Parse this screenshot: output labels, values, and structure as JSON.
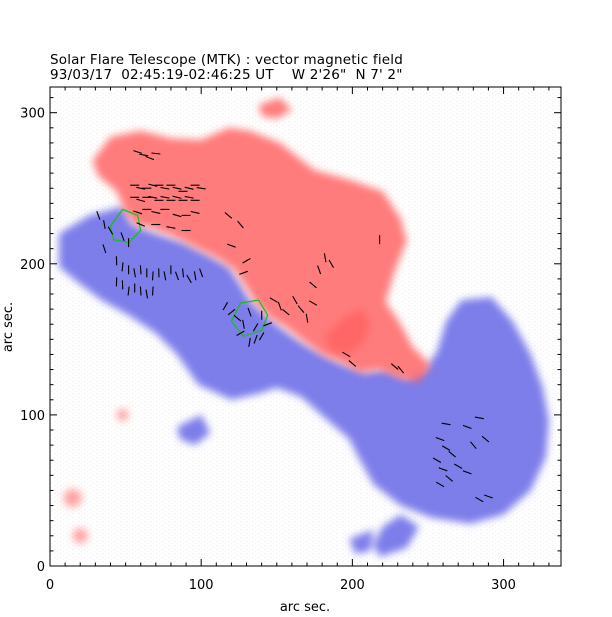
{
  "chart_data": {
    "type": "heatmap",
    "title": "Solar Flare Telescope (MTK) : vector magnetic field",
    "subtitle": "93/03/17  02:45:19-02:46:25 UT    W 2'26\"  N 7' 2\"",
    "xlabel": "arc sec.",
    "ylabel": "arc sec.",
    "xlim": [
      0,
      338
    ],
    "ylim": [
      0,
      317
    ],
    "x_ticks": [
      0,
      100,
      200,
      300
    ],
    "y_ticks": [
      0,
      100,
      200,
      300
    ],
    "colors": {
      "positive_polarity": "#ff6464",
      "negative_polarity": "#5a5ae6",
      "neutral_line": "#16c016",
      "vector": "#000000"
    },
    "positive_regions": [
      [
        [
          28,
          268
        ],
        [
          40,
          284
        ],
        [
          60,
          288
        ],
        [
          80,
          283
        ],
        [
          100,
          282
        ],
        [
          118,
          290
        ],
        [
          132,
          288
        ],
        [
          152,
          280
        ],
        [
          175,
          262
        ],
        [
          200,
          255
        ],
        [
          220,
          248
        ],
        [
          232,
          230
        ],
        [
          236,
          215
        ],
        [
          228,
          195
        ],
        [
          222,
          175
        ],
        [
          232,
          160
        ],
        [
          240,
          145
        ],
        [
          252,
          133
        ],
        [
          244,
          122
        ],
        [
          232,
          124
        ],
        [
          218,
          130
        ],
        [
          205,
          128
        ],
        [
          192,
          135
        ],
        [
          180,
          140
        ],
        [
          166,
          150
        ],
        [
          156,
          158
        ],
        [
          146,
          164
        ],
        [
          136,
          174
        ],
        [
          130,
          184
        ],
        [
          122,
          196
        ],
        [
          112,
          203
        ],
        [
          98,
          210
        ],
        [
          82,
          218
        ],
        [
          66,
          224
        ],
        [
          56,
          226
        ],
        [
          50,
          234
        ],
        [
          44,
          248
        ],
        [
          32,
          258
        ]
      ],
      [
        [
          182,
          152
        ],
        [
          195,
          165
        ],
        [
          206,
          170
        ],
        [
          212,
          160
        ],
        [
          206,
          146
        ],
        [
          196,
          140
        ],
        [
          186,
          142
        ]
      ],
      [
        [
          138,
          305
        ],
        [
          152,
          310
        ],
        [
          160,
          302
        ],
        [
          150,
          296
        ],
        [
          140,
          298
        ]
      ]
    ],
    "negative_regions": [
      [
        [
          6,
          220
        ],
        [
          26,
          232
        ],
        [
          48,
          238
        ],
        [
          54,
          226
        ],
        [
          70,
          220
        ],
        [
          88,
          214
        ],
        [
          104,
          206
        ],
        [
          118,
          198
        ],
        [
          126,
          186
        ],
        [
          132,
          176
        ],
        [
          142,
          166
        ],
        [
          152,
          158
        ],
        [
          166,
          148
        ],
        [
          180,
          140
        ],
        [
          192,
          134
        ],
        [
          208,
          128
        ],
        [
          222,
          130
        ],
        [
          236,
          124
        ],
        [
          248,
          130
        ],
        [
          256,
          142
        ],
        [
          262,
          162
        ],
        [
          272,
          176
        ],
        [
          292,
          178
        ],
        [
          306,
          162
        ],
        [
          318,
          140
        ],
        [
          326,
          118
        ],
        [
          330,
          96
        ],
        [
          328,
          72
        ],
        [
          318,
          50
        ],
        [
          300,
          34
        ],
        [
          278,
          28
        ],
        [
          252,
          32
        ],
        [
          232,
          40
        ],
        [
          214,
          54
        ],
        [
          204,
          72
        ],
        [
          198,
          84
        ],
        [
          184,
          96
        ],
        [
          166,
          112
        ],
        [
          150,
          118
        ],
        [
          138,
          114
        ],
        [
          120,
          110
        ],
        [
          98,
          120
        ],
        [
          84,
          140
        ],
        [
          70,
          154
        ],
        [
          52,
          166
        ],
        [
          34,
          176
        ],
        [
          18,
          188
        ],
        [
          6,
          198
        ]
      ],
      [
        [
          218,
          6
        ],
        [
          236,
          12
        ],
        [
          244,
          26
        ],
        [
          232,
          34
        ],
        [
          220,
          26
        ],
        [
          214,
          14
        ]
      ],
      [
        [
          84,
          92
        ],
        [
          100,
          100
        ],
        [
          106,
          88
        ],
        [
          96,
          80
        ],
        [
          86,
          84
        ]
      ],
      [
        [
          198,
          18
        ],
        [
          214,
          24
        ],
        [
          212,
          10
        ],
        [
          202,
          8
        ]
      ]
    ],
    "positive_spots": [
      [
        15,
        45,
        6
      ],
      [
        20,
        20,
        5
      ],
      [
        48,
        100,
        4
      ]
    ],
    "neutral_line_loops": [
      [
        [
          40,
          225
        ],
        [
          48,
          236
        ],
        [
          58,
          232
        ],
        [
          60,
          222
        ],
        [
          52,
          214
        ],
        [
          42,
          216
        ]
      ],
      [
        [
          120,
          162
        ],
        [
          126,
          174
        ],
        [
          138,
          176
        ],
        [
          144,
          166
        ],
        [
          140,
          156
        ],
        [
          128,
          152
        ]
      ]
    ],
    "vectors": [
      [
        58,
        274,
        -18
      ],
      [
        62,
        272,
        -10
      ],
      [
        66,
        270,
        -20
      ],
      [
        70,
        273,
        -6
      ],
      [
        56,
        252,
        0
      ],
      [
        60,
        250,
        -12
      ],
      [
        64,
        250,
        0
      ],
      [
        68,
        252,
        -14
      ],
      [
        72,
        252,
        0
      ],
      [
        76,
        250,
        -10
      ],
      [
        80,
        252,
        0
      ],
      [
        84,
        250,
        -12
      ],
      [
        88,
        248,
        0
      ],
      [
        92,
        250,
        -14
      ],
      [
        96,
        252,
        0
      ],
      [
        100,
        250,
        -8
      ],
      [
        56,
        244,
        0
      ],
      [
        60,
        242,
        -16
      ],
      [
        64,
        244,
        0
      ],
      [
        68,
        244,
        -12
      ],
      [
        72,
        242,
        0
      ],
      [
        76,
        244,
        -10
      ],
      [
        80,
        242,
        0
      ],
      [
        84,
        244,
        -14
      ],
      [
        88,
        242,
        0
      ],
      [
        92,
        244,
        -10
      ],
      [
        96,
        242,
        0
      ],
      [
        58,
        234,
        -18
      ],
      [
        64,
        236,
        0
      ],
      [
        70,
        234,
        -12
      ],
      [
        76,
        236,
        0
      ],
      [
        84,
        232,
        -16
      ],
      [
        90,
        232,
        0
      ],
      [
        96,
        234,
        -12
      ],
      [
        60,
        226,
        -24
      ],
      [
        70,
        226,
        0
      ],
      [
        80,
        224,
        -10
      ],
      [
        90,
        222,
        0
      ],
      [
        32,
        232,
        -70
      ],
      [
        36,
        226,
        -80
      ],
      [
        40,
        222,
        -60
      ],
      [
        48,
        218,
        -70
      ],
      [
        52,
        214,
        -90
      ],
      [
        36,
        210,
        -72
      ],
      [
        44,
        202,
        -88
      ],
      [
        48,
        198,
        -96
      ],
      [
        52,
        196,
        -90
      ],
      [
        56,
        194,
        -80
      ],
      [
        60,
        196,
        -86
      ],
      [
        64,
        194,
        -90
      ],
      [
        68,
        192,
        -94
      ],
      [
        72,
        194,
        -88
      ],
      [
        76,
        192,
        -80
      ],
      [
        80,
        196,
        -90
      ],
      [
        84,
        192,
        -70
      ],
      [
        88,
        194,
        -84
      ],
      [
        92,
        190,
        -60
      ],
      [
        96,
        192,
        -80
      ],
      [
        100,
        194,
        -70
      ],
      [
        44,
        188,
        -92
      ],
      [
        48,
        186,
        -88
      ],
      [
        52,
        182,
        -96
      ],
      [
        56,
        184,
        -90
      ],
      [
        60,
        182,
        -86
      ],
      [
        64,
        180,
        -80
      ],
      [
        68,
        182,
        -94
      ],
      [
        118,
        232,
        -40
      ],
      [
        126,
        226,
        -50
      ],
      [
        120,
        212,
        -20
      ],
      [
        130,
        202,
        30
      ],
      [
        128,
        194,
        20
      ],
      [
        116,
        172,
        60
      ],
      [
        120,
        168,
        40
      ],
      [
        124,
        164,
        -40
      ],
      [
        128,
        160,
        -80
      ],
      [
        132,
        168,
        -70
      ],
      [
        136,
        158,
        60
      ],
      [
        140,
        166,
        90
      ],
      [
        144,
        160,
        20
      ],
      [
        132,
        148,
        80
      ],
      [
        136,
        150,
        70
      ],
      [
        140,
        152,
        60
      ],
      [
        126,
        154,
        30
      ],
      [
        148,
        176,
        -30
      ],
      [
        152,
        172,
        -70
      ],
      [
        156,
        168,
        -40
      ],
      [
        162,
        176,
        -60
      ],
      [
        166,
        170,
        -50
      ],
      [
        170,
        164,
        -80
      ],
      [
        174,
        174,
        -30
      ],
      [
        174,
        186,
        -40
      ],
      [
        178,
        196,
        -70
      ],
      [
        182,
        204,
        -80
      ],
      [
        186,
        200,
        -60
      ],
      [
        196,
        140,
        -30
      ],
      [
        200,
        134,
        -40
      ],
      [
        218,
        216,
        -90
      ],
      [
        228,
        132,
        -40
      ],
      [
        232,
        130,
        -50
      ],
      [
        262,
        94,
        -10
      ],
      [
        276,
        92,
        -20
      ],
      [
        284,
        98,
        -10
      ],
      [
        288,
        84,
        -40
      ],
      [
        280,
        80,
        -50
      ],
      [
        258,
        84,
        -20
      ],
      [
        262,
        78,
        -30
      ],
      [
        266,
        74,
        -40
      ],
      [
        256,
        70,
        -30
      ],
      [
        260,
        64,
        -20
      ],
      [
        264,
        58,
        -40
      ],
      [
        258,
        54,
        -30
      ],
      [
        290,
        46,
        -20
      ],
      [
        284,
        44,
        -30
      ],
      [
        276,
        62,
        -20
      ],
      [
        270,
        66,
        -30
      ]
    ]
  }
}
